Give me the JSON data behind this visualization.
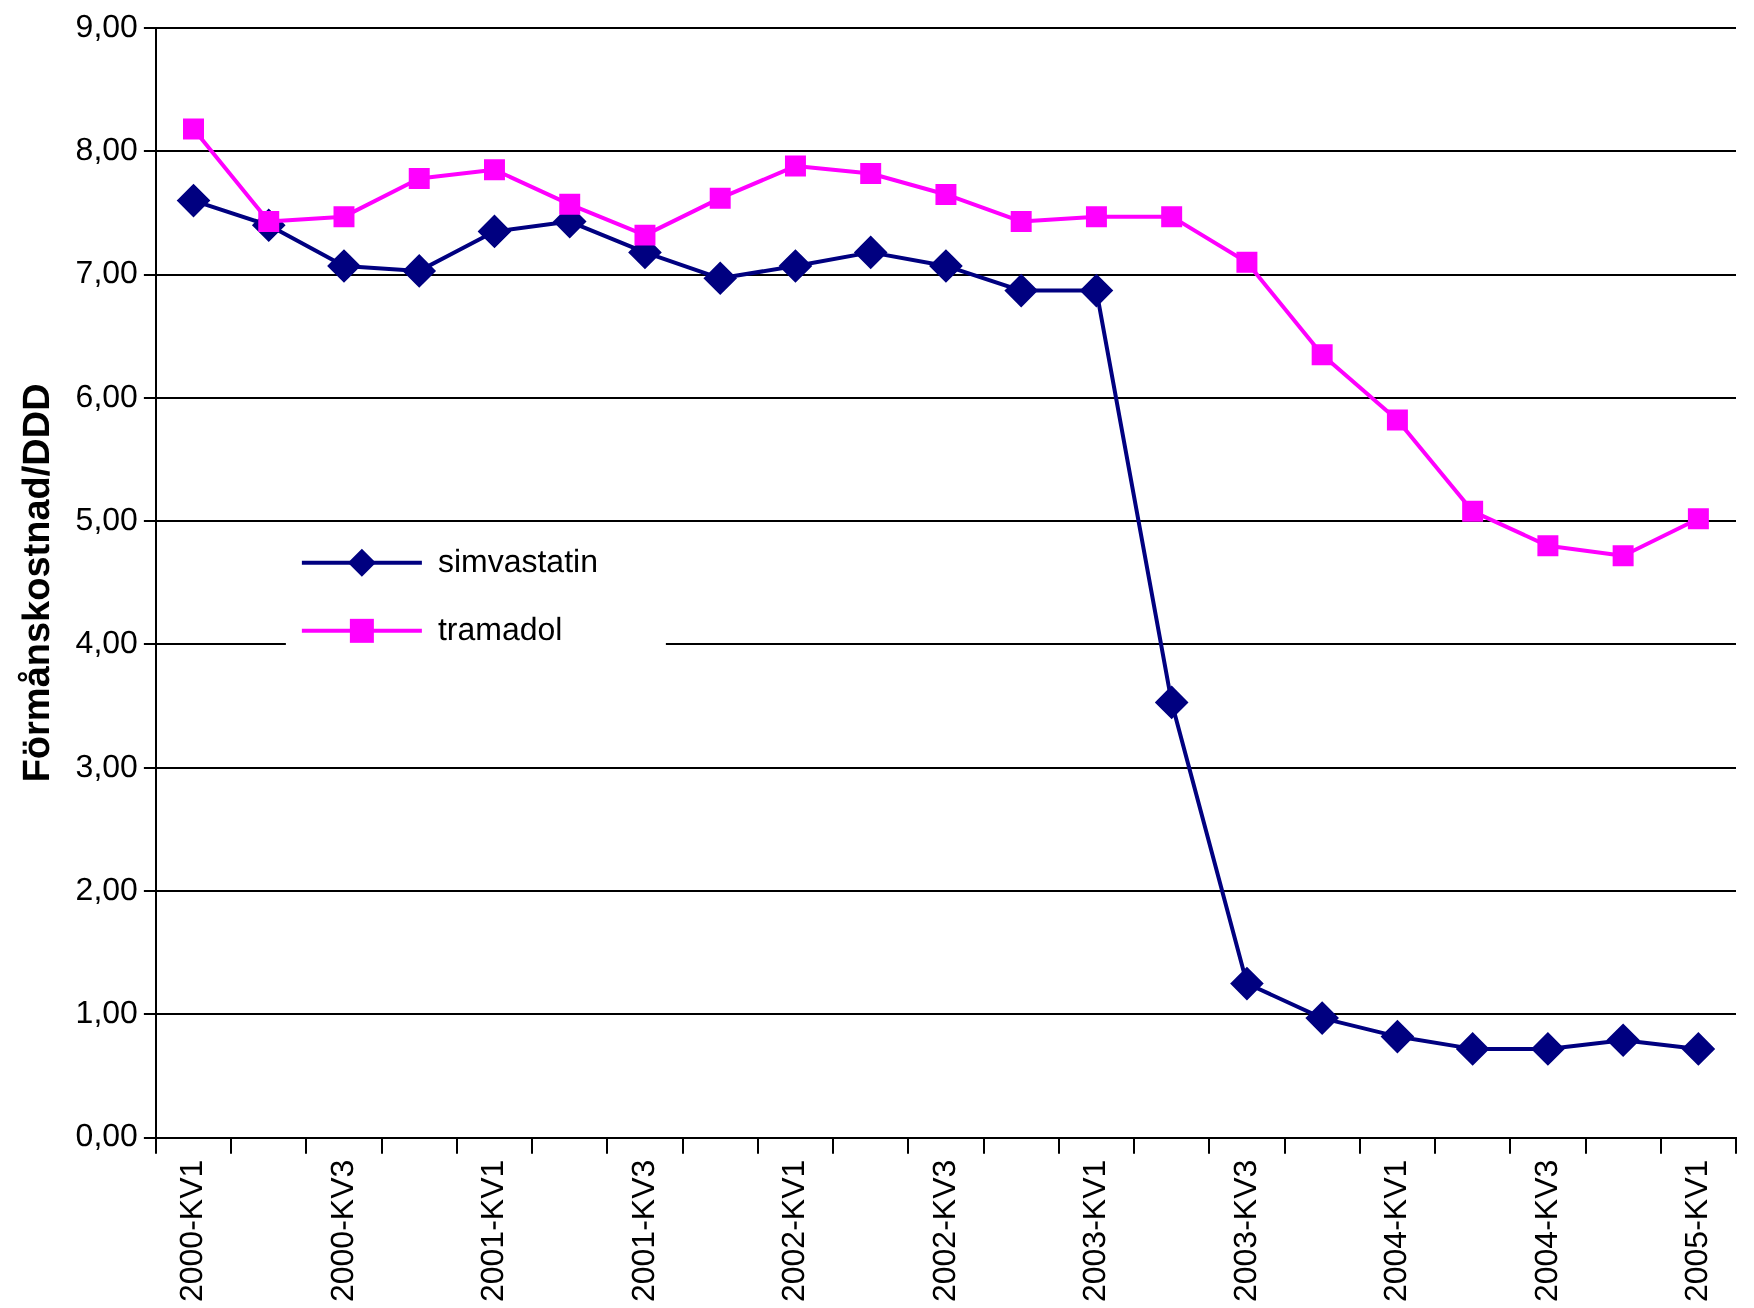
{
  "chart_data": {
    "type": "line",
    "ylabel": "Förmånskostnad/DDD",
    "categories": [
      "2000-KV1",
      null,
      "2000-KV3",
      null,
      "2001-KV1",
      null,
      "2001-KV3",
      null,
      "2002-KV1",
      null,
      "2002-KV3",
      null,
      "2003-KV1",
      null,
      "2003-KV3",
      null,
      "2004-KV1",
      null,
      "2004-KV3",
      null,
      "2005-KV1"
    ],
    "series": [
      {
        "name": "simvastatin",
        "color": "#000080",
        "marker": "diamond",
        "values": [
          7.6,
          7.4,
          7.07,
          7.03,
          7.35,
          7.43,
          7.18,
          6.97,
          7.07,
          7.18,
          7.07,
          6.87,
          6.87,
          3.53,
          1.25,
          0.97,
          0.82,
          0.72,
          0.72,
          0.79,
          0.72
        ]
      },
      {
        "name": "tramadol",
        "color": "#ff00ff",
        "marker": "square",
        "values": [
          8.18,
          7.43,
          7.47,
          7.78,
          7.85,
          7.57,
          7.32,
          7.62,
          7.88,
          7.82,
          7.65,
          7.43,
          7.47,
          7.47,
          7.1,
          6.35,
          5.82,
          5.08,
          4.8,
          4.72,
          5.02
        ]
      }
    ],
    "ylim": [
      0,
      9
    ],
    "yticks": [
      {
        "value": 0,
        "label": "0,00"
      },
      {
        "value": 1,
        "label": "1,00"
      },
      {
        "value": 2,
        "label": "2,00"
      },
      {
        "value": 3,
        "label": "3,00"
      },
      {
        "value": 4,
        "label": "4,00"
      },
      {
        "value": 5,
        "label": "5,00"
      },
      {
        "value": 6,
        "label": "6,00"
      },
      {
        "value": 7,
        "label": "7,00"
      },
      {
        "value": 8,
        "label": "8,00"
      },
      {
        "value": 9,
        "label": "9,00"
      }
    ],
    "grid": "y",
    "legend": "left",
    "line_style": "solid"
  }
}
